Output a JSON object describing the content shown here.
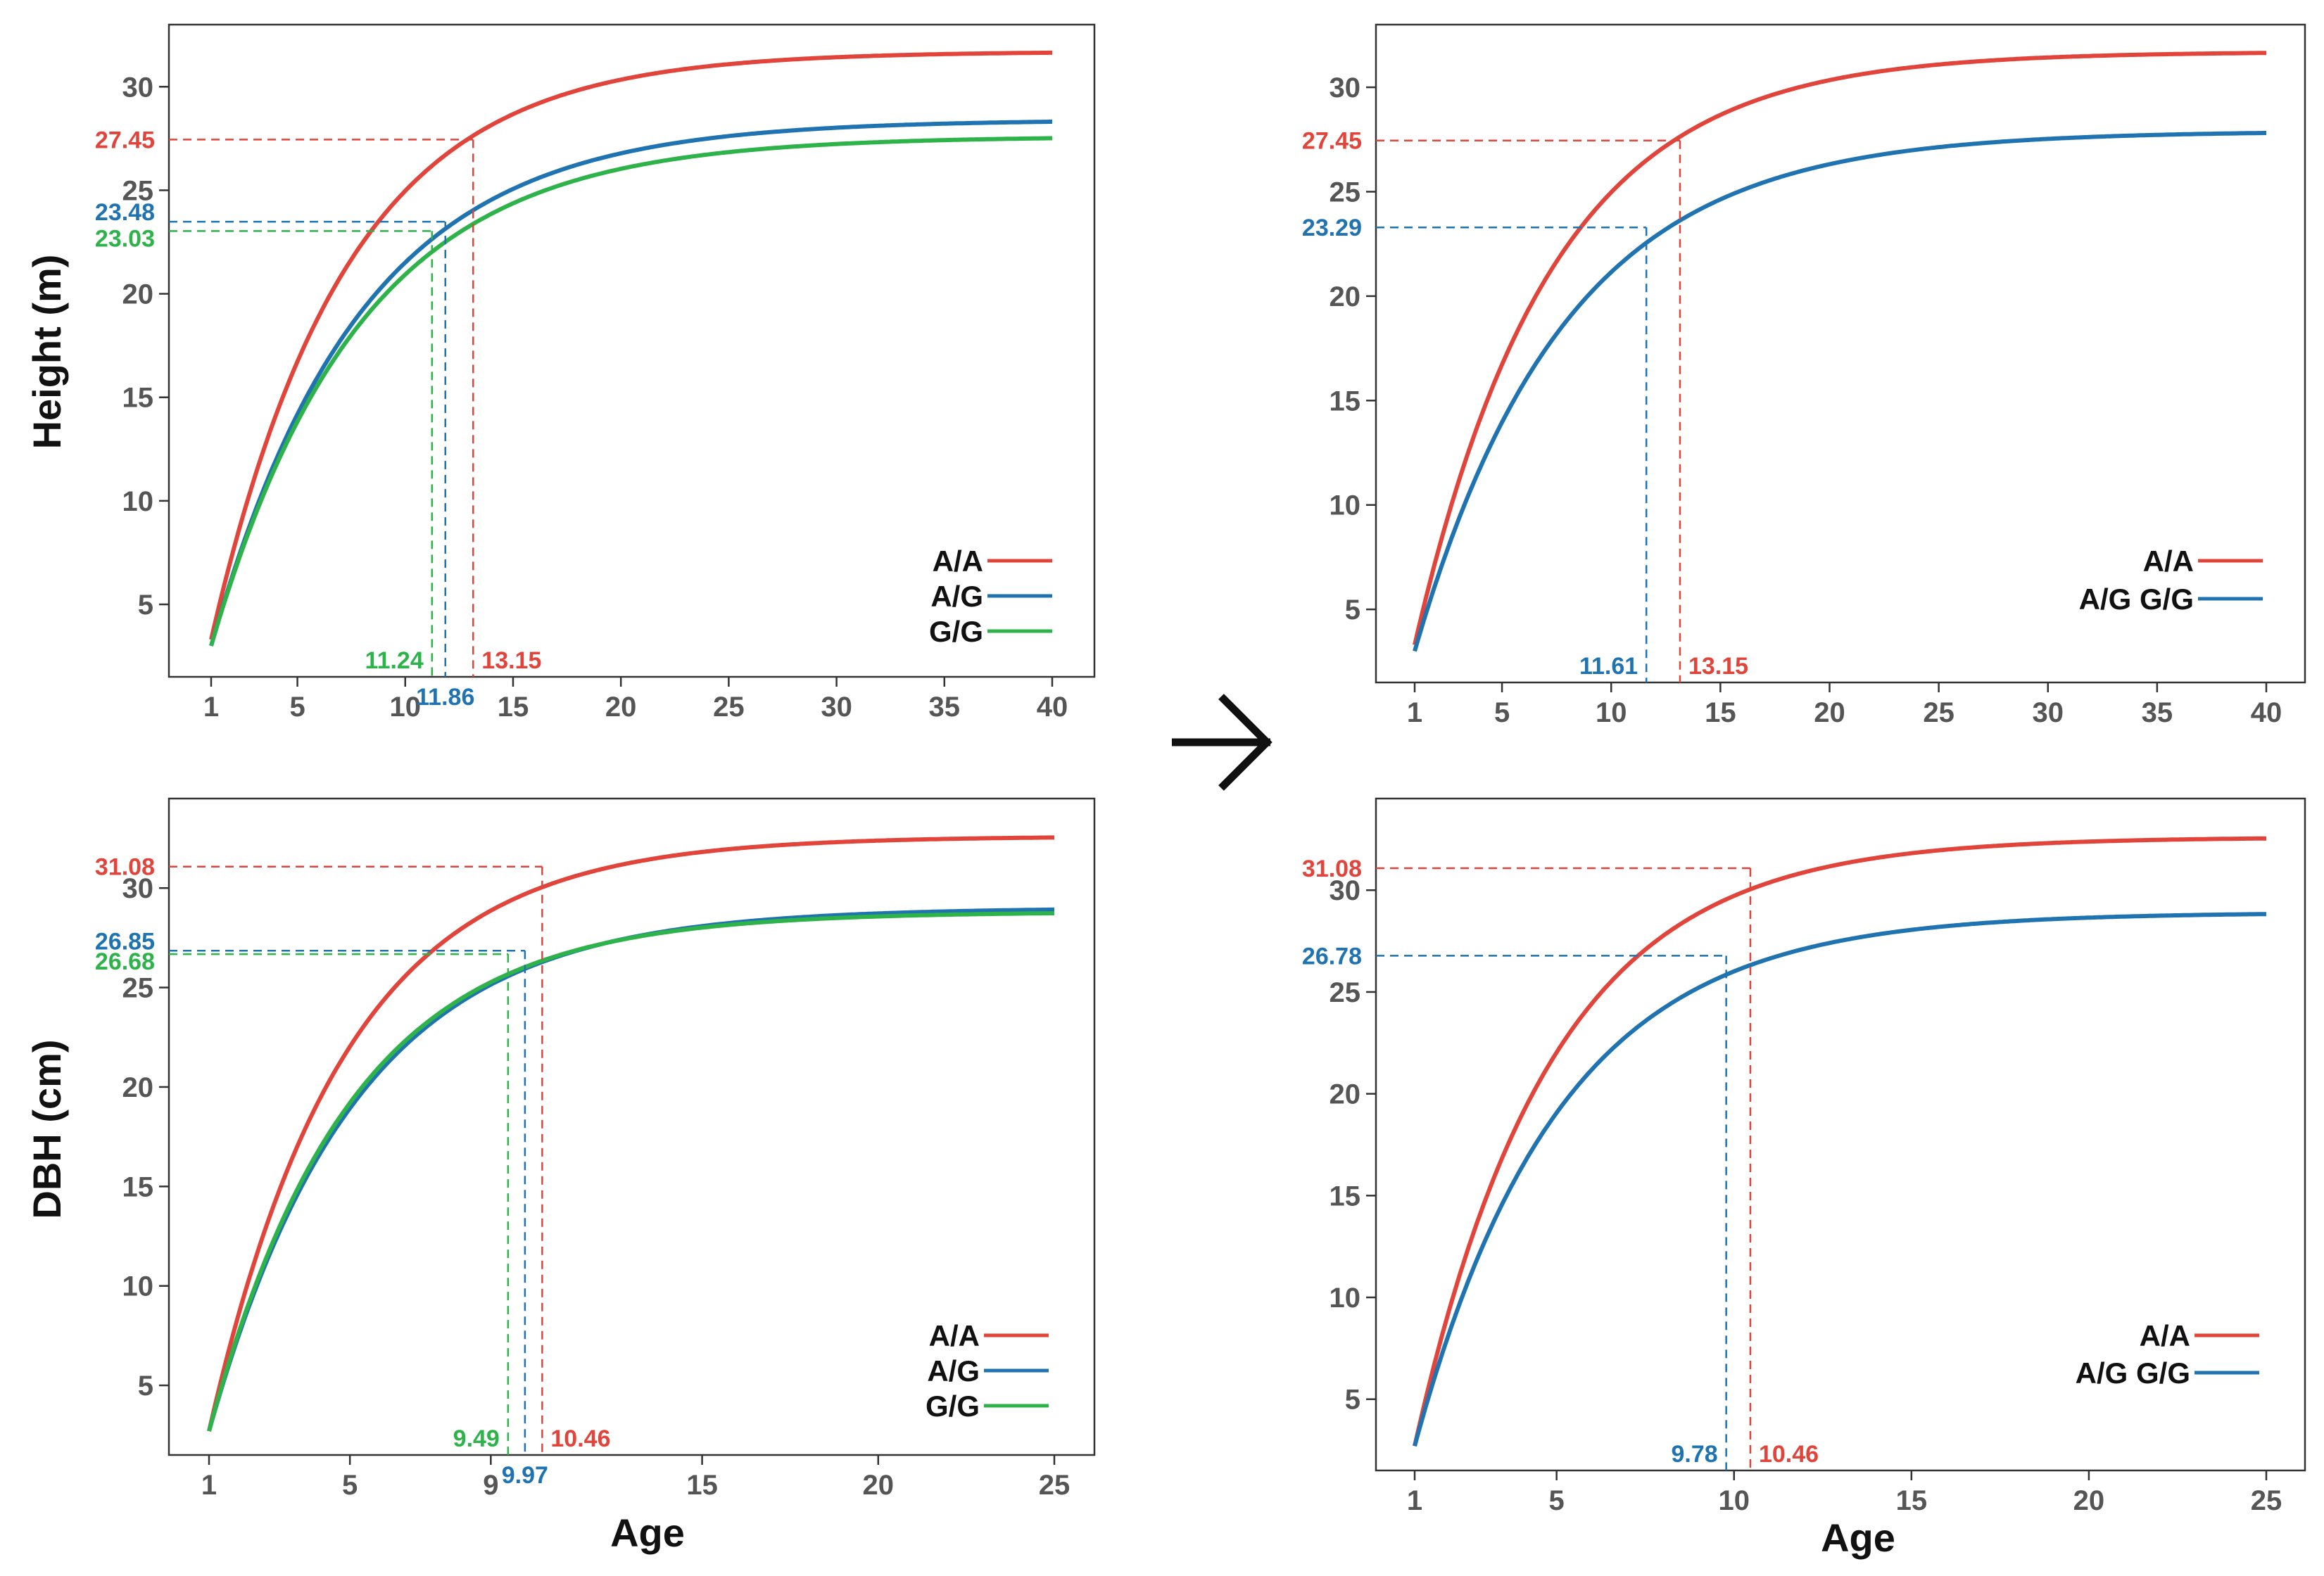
{
  "colors": {
    "A/A": "#e0443a",
    "A/G": "#1f73b0",
    "G/G": "#2db34a",
    "A/G G/G": "#1f73b0",
    "arrow": "#111111"
  },
  "figure": {
    "row_labels": {
      "height": "Height (m)",
      "dbh": "DBH (cm)"
    },
    "x_label": "Age",
    "arrow_icon": "right-arrow-icon"
  },
  "chart_data": [
    {
      "id": "height-3genotype",
      "type": "line",
      "ylabel": "Height (m)",
      "xlabel": "",
      "xlim": [
        1,
        40
      ],
      "ylim": [
        1.5,
        33
      ],
      "xticks": [
        1,
        5,
        10,
        15,
        20,
        25,
        30,
        35,
        40
      ],
      "yticks": [
        5,
        10,
        15,
        20,
        25,
        30
      ],
      "series": [
        {
          "name": "A/A",
          "A": 31.7,
          "k": 0.16,
          "y0": 3.3
        },
        {
          "name": "A/G",
          "A": 28.4,
          "k": 0.145,
          "y0": 3.0
        },
        {
          "name": "G/G",
          "A": 27.6,
          "k": 0.145,
          "y0": 3.0
        }
      ],
      "annotations": [
        {
          "series": "A/A",
          "x": 13.15,
          "y": 27.45,
          "x_label": "13.15",
          "y_label": "27.45"
        },
        {
          "series": "A/G",
          "x": 11.86,
          "y": 23.48,
          "x_label": "11.86",
          "y_label": "23.48"
        },
        {
          "series": "G/G",
          "x": 11.24,
          "y": 23.03,
          "x_label": "11.24",
          "y_label": "23.03"
        }
      ],
      "legend": [
        "A/A",
        "A/G",
        "G/G"
      ]
    },
    {
      "id": "height-2genotype",
      "type": "line",
      "ylabel": "",
      "xlabel": "",
      "xlim": [
        1,
        40
      ],
      "ylim": [
        1.5,
        33
      ],
      "xticks": [
        1,
        5,
        10,
        15,
        20,
        25,
        30,
        35,
        40
      ],
      "yticks": [
        5,
        10,
        15,
        20,
        25,
        30
      ],
      "series": [
        {
          "name": "A/A",
          "A": 31.7,
          "k": 0.16,
          "y0": 3.3
        },
        {
          "name": "A/G G/G",
          "A": 27.9,
          "k": 0.145,
          "y0": 3.0
        }
      ],
      "annotations": [
        {
          "series": "A/A",
          "x": 13.15,
          "y": 27.45,
          "x_label": "13.15",
          "y_label": "27.45"
        },
        {
          "series": "A/G G/G",
          "x": 11.61,
          "y": 23.29,
          "x_label": "11.61",
          "y_label": "23.29"
        }
      ],
      "legend": [
        "A/A",
        "A/G G/G"
      ]
    },
    {
      "id": "dbh-3genotype",
      "type": "line",
      "ylabel": "DBH (cm)",
      "xlabel": "Age",
      "xlim": [
        1,
        25
      ],
      "ylim": [
        1.5,
        34.5
      ],
      "xticks": [
        1,
        5,
        9,
        15,
        20,
        25
      ],
      "yticks": [
        5,
        10,
        15,
        20,
        25,
        30
      ],
      "series": [
        {
          "name": "A/A",
          "A": 32.6,
          "k": 0.26,
          "y0": 2.7
        },
        {
          "name": "A/G",
          "A": 29.0,
          "k": 0.24,
          "y0": 2.7
        },
        {
          "name": "G/G",
          "A": 28.8,
          "k": 0.25,
          "y0": 2.7
        }
      ],
      "annotations": [
        {
          "series": "A/A",
          "x": 10.46,
          "y": 31.08,
          "x_label": "10.46",
          "y_label": "31.08"
        },
        {
          "series": "A/G",
          "x": 9.97,
          "y": 26.85,
          "x_label": "9.97",
          "y_label": "26.85"
        },
        {
          "series": "G/G",
          "x": 9.49,
          "y": 26.68,
          "x_label": "9.49",
          "y_label": "26.68"
        }
      ],
      "legend": [
        "A/A",
        "A/G",
        "G/G"
      ]
    },
    {
      "id": "dbh-2genotype",
      "type": "line",
      "ylabel": "",
      "xlabel": "Age",
      "xlim": [
        1,
        25
      ],
      "ylim": [
        1.5,
        34.5
      ],
      "xticks": [
        1,
        5,
        10,
        15,
        20,
        25
      ],
      "yticks": [
        5,
        10,
        15,
        20,
        25,
        30
      ],
      "series": [
        {
          "name": "A/A",
          "A": 32.6,
          "k": 0.26,
          "y0": 2.7
        },
        {
          "name": "A/G G/G",
          "A": 28.9,
          "k": 0.245,
          "y0": 2.7
        }
      ],
      "annotations": [
        {
          "series": "A/A",
          "x": 10.46,
          "y": 31.08,
          "x_label": "10.46",
          "y_label": "31.08"
        },
        {
          "series": "A/G G/G",
          "x": 9.78,
          "y": 26.78,
          "x_label": "9.78",
          "y_label": "26.78"
        }
      ],
      "legend": [
        "A/A",
        "A/G G/G"
      ]
    }
  ]
}
